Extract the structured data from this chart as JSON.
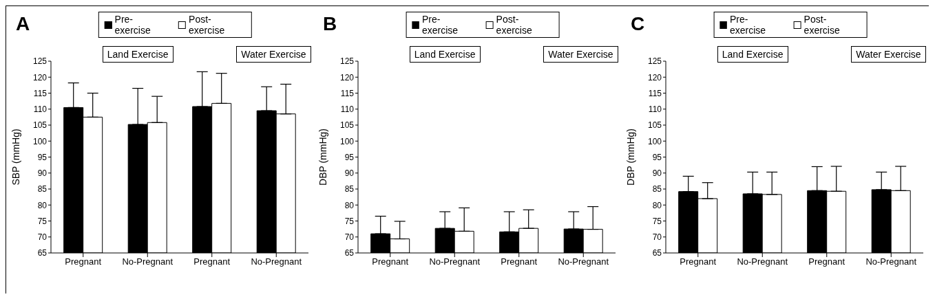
{
  "chart_data": [
    {
      "type": "bar",
      "title": "A",
      "ylabel": "SBP (mmHg)",
      "categories": [
        "Pregnant",
        "No-Pregnant",
        "Pregnant",
        "No-Pregnant"
      ],
      "ylim": [
        65,
        125
      ],
      "yticks": [
        65,
        70,
        75,
        80,
        85,
        90,
        95,
        100,
        105,
        110,
        115,
        120,
        125
      ],
      "grid": false,
      "legend": "top",
      "annotations": [
        "Land Exercise",
        "Water Exercise"
      ],
      "series": [
        {
          "name": "Pre-exercise",
          "color": "#000000",
          "values": [
            110.5,
            105.2,
            110.8,
            109.5
          ],
          "errors": [
            [
              110.5,
              118.2
            ],
            [
              105.2,
              116.5
            ],
            [
              110.8,
              121.7
            ],
            [
              109.5,
              117
            ]
          ]
        },
        {
          "name": "Post-exercise",
          "color": "#ffffff",
          "values": [
            107.5,
            105.8,
            111.8,
            108.5
          ],
          "errors": [
            [
              107.5,
              115
            ],
            [
              105.8,
              114
            ],
            [
              111.8,
              121.2
            ],
            [
              108.5,
              117.8
            ]
          ]
        }
      ]
    },
    {
      "type": "bar",
      "title": "B",
      "ylabel": "DBP (mmHg)",
      "categories": [
        "Pregnant",
        "No-Pregnant",
        "Pregnant",
        "No-Pregnant"
      ],
      "ylim": [
        65,
        125
      ],
      "yticks": [
        65,
        70,
        75,
        80,
        85,
        90,
        95,
        100,
        105,
        110,
        115,
        120,
        125
      ],
      "grid": false,
      "legend": "top",
      "annotations": [
        "Land Exercise",
        "Water Exercise"
      ],
      "series": [
        {
          "name": "Pre-exercise",
          "color": "#000000",
          "values": [
            71,
            72.7,
            71.6,
            72.5
          ],
          "errors": [
            [
              71,
              76.5
            ],
            [
              72.7,
              77.9
            ],
            [
              71.6,
              77.9
            ],
            [
              72.5,
              77.9
            ]
          ]
        },
        {
          "name": "Post-exercise",
          "color": "#ffffff",
          "values": [
            69.4,
            71.8,
            72.7,
            72.4
          ],
          "errors": [
            [
              69.4,
              74.9
            ],
            [
              71.8,
              79.1
            ],
            [
              72.7,
              78.5
            ],
            [
              72.4,
              79.5
            ]
          ]
        }
      ]
    },
    {
      "type": "bar",
      "title": "C",
      "ylabel": "DBP (mmHg)",
      "categories": [
        "Pregnant",
        "No-Pregnant",
        "Pregnant",
        "No-Pregnant"
      ],
      "ylim": [
        65,
        125
      ],
      "yticks": [
        65,
        70,
        75,
        80,
        85,
        90,
        95,
        100,
        105,
        110,
        115,
        120,
        125
      ],
      "grid": false,
      "legend": "top",
      "annotations": [
        "Land Exercise",
        "Water Exercise"
      ],
      "series": [
        {
          "name": "Pre-exercise",
          "color": "#000000",
          "values": [
            84.2,
            83.5,
            84.5,
            84.8
          ],
          "errors": [
            [
              84.2,
              89
            ],
            [
              83.5,
              90.3
            ],
            [
              84.5,
              92
            ],
            [
              84.8,
              90.3
            ]
          ]
        },
        {
          "name": "Post-exercise",
          "color": "#ffffff",
          "values": [
            82,
            83.3,
            84.3,
            84.5
          ],
          "errors": [
            [
              82,
              87
            ],
            [
              83.3,
              90.3
            ],
            [
              84.3,
              92.1
            ],
            [
              84.5,
              92.1
            ]
          ]
        }
      ]
    }
  ]
}
